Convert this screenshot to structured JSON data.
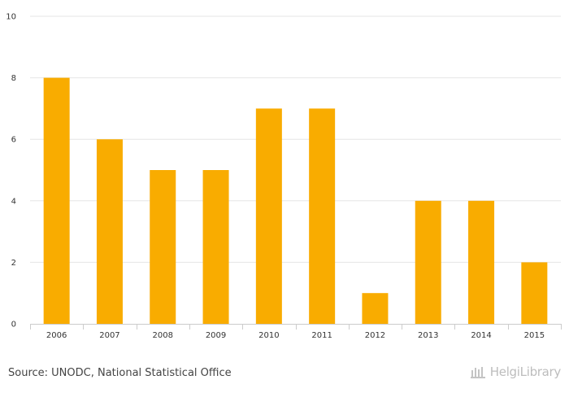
{
  "chart_data": {
    "type": "bar",
    "categories": [
      "2006",
      "2007",
      "2008",
      "2009",
      "2010",
      "2011",
      "2012",
      "2013",
      "2014",
      "2015"
    ],
    "values": [
      8,
      6,
      5,
      5,
      7,
      7,
      1,
      4,
      4,
      2
    ],
    "ylim": [
      0,
      10
    ],
    "yticks": [
      0,
      2,
      4,
      6,
      8,
      10
    ],
    "title": "",
    "xlabel": "",
    "ylabel": "",
    "grid": true,
    "bar_color": "#f9ac00"
  },
  "footer": {
    "source": "Source: UNODC, National Statistical Office",
    "logo": "HelgiLibrary"
  }
}
